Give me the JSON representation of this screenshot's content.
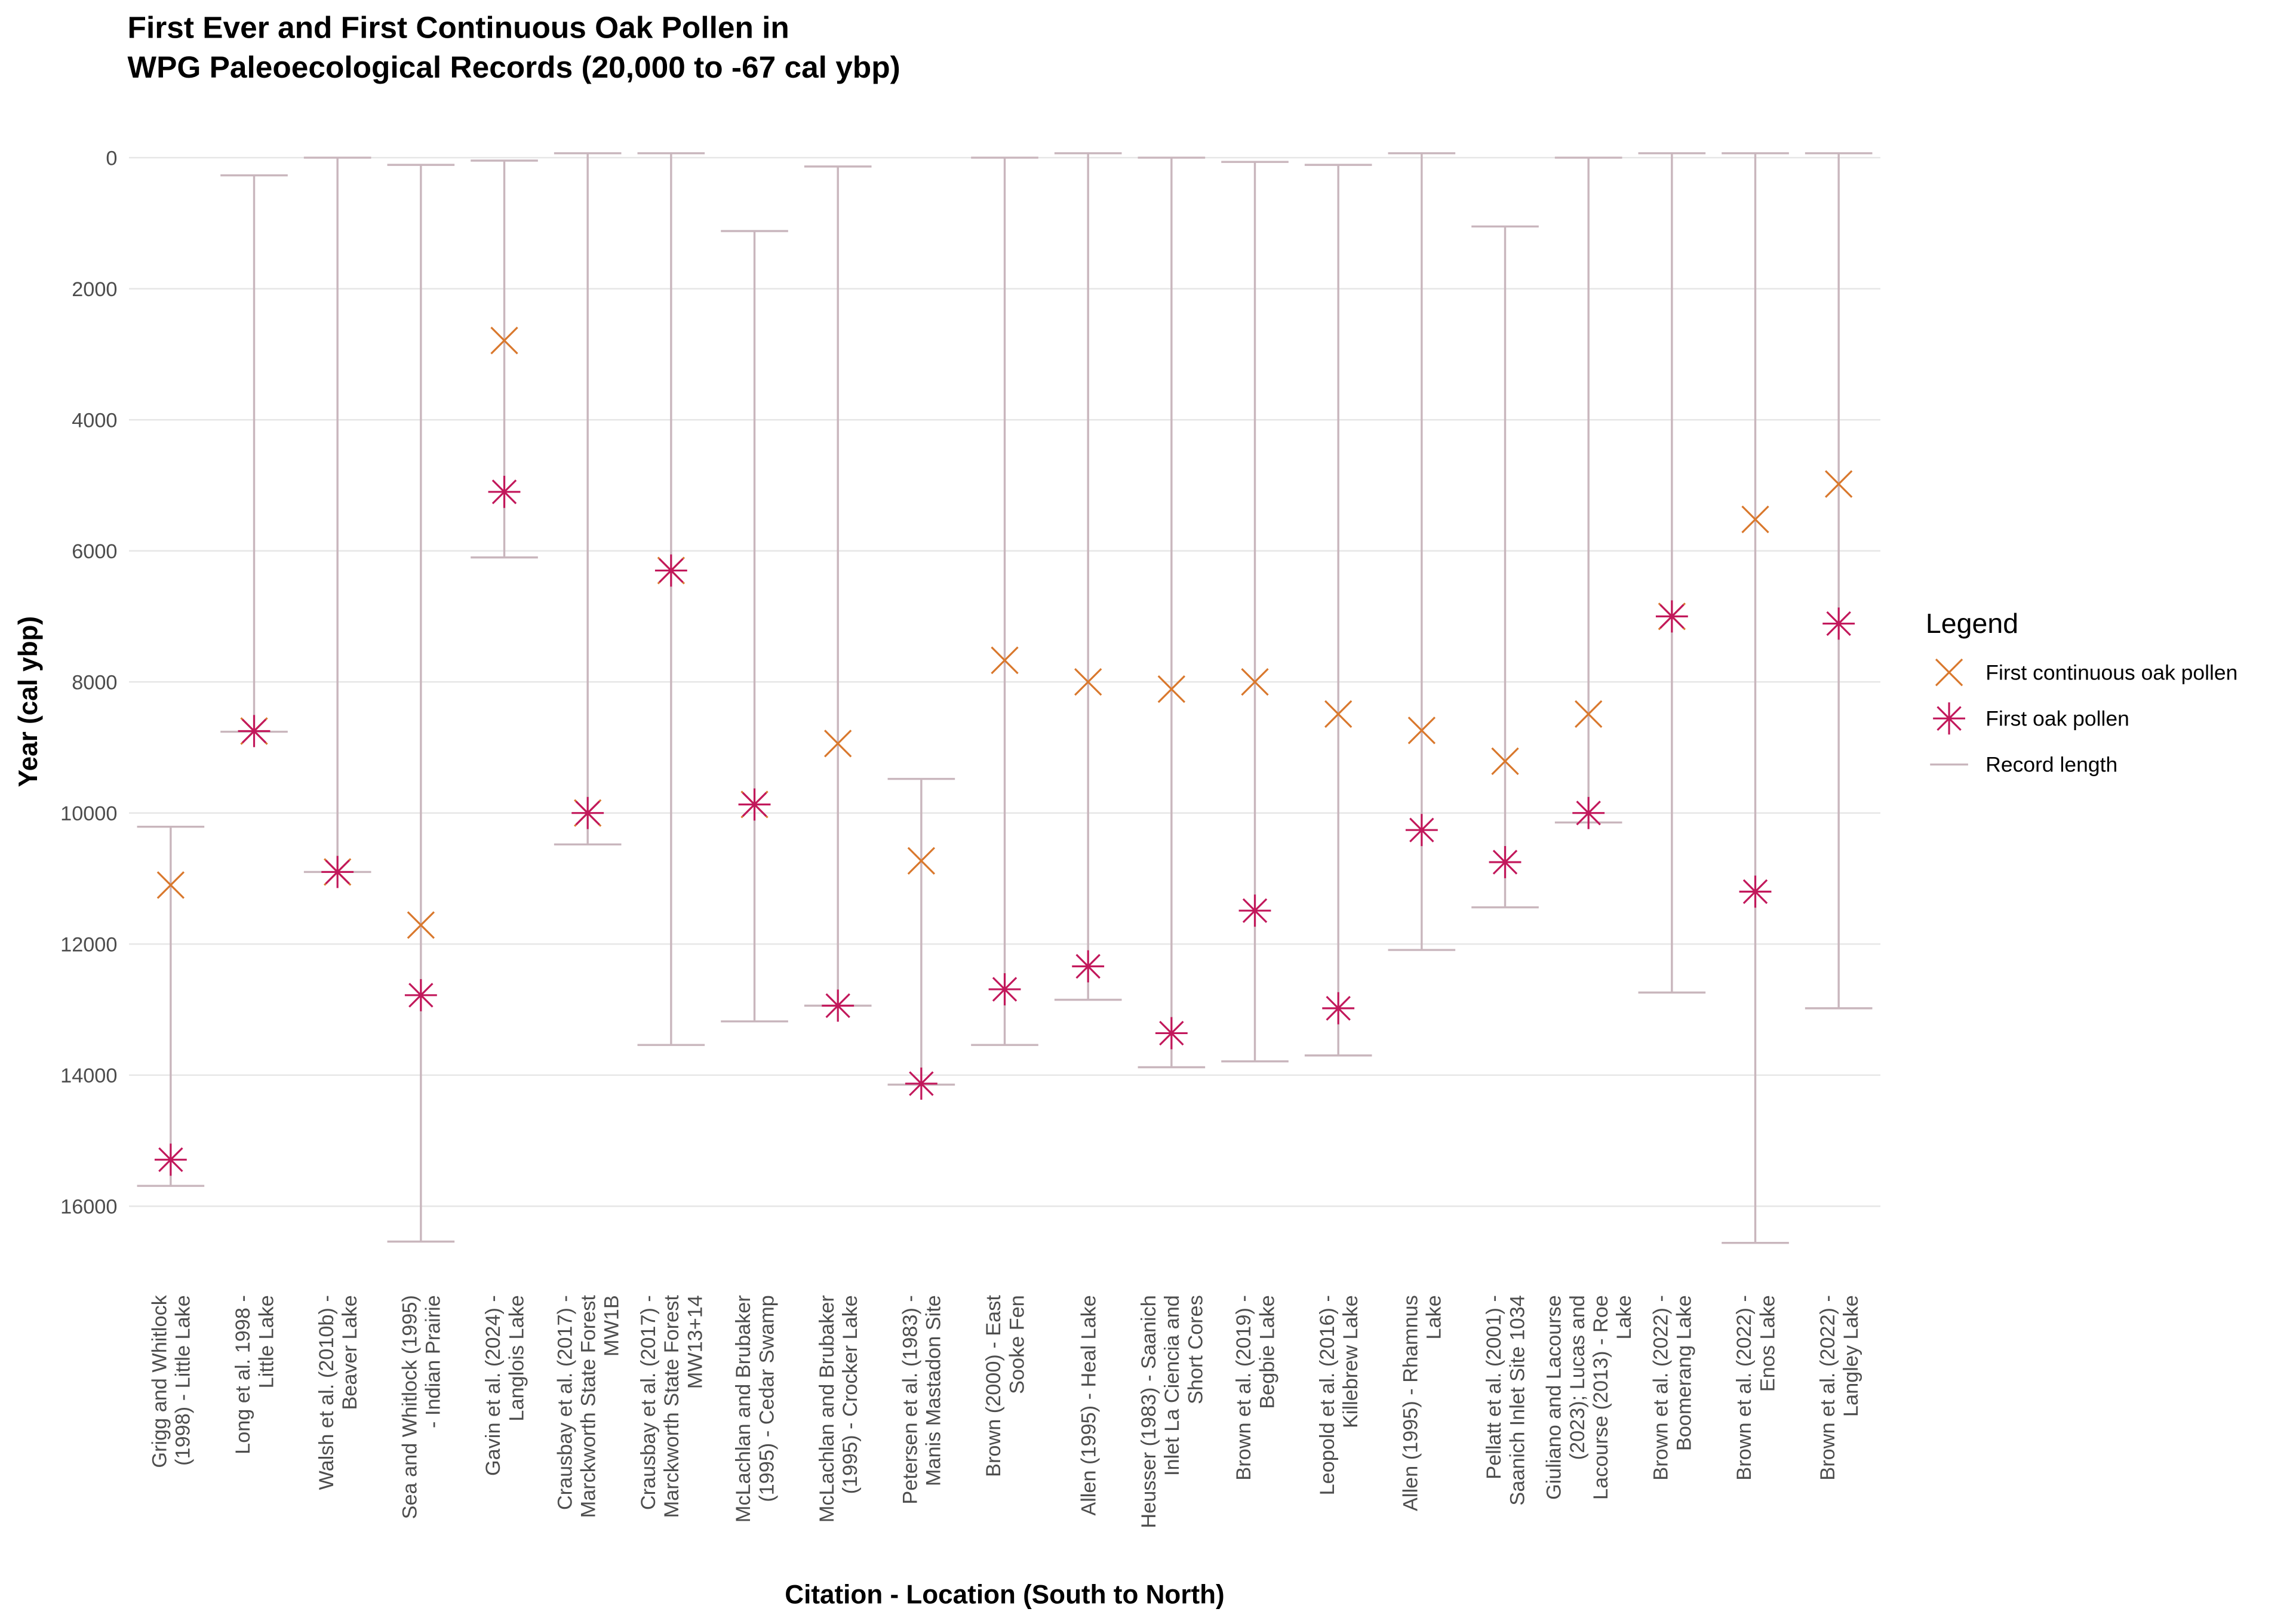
{
  "chart_data": {
    "type": "point-range",
    "title": [
      "First Ever and First Continuous Oak Pollen in",
      "WPG Paleoecological Records (20,000 to -67 cal ybp)"
    ],
    "x_label": "Citation - Location (South to North)",
    "y_label": "Year (cal ybp)",
    "legend_title": "Legend",
    "legend_position": "right",
    "grid": true,
    "y_reversed": true,
    "ylim": [
      -220,
      17000
    ],
    "yticks": [
      0,
      2000,
      4000,
      6000,
      8000,
      10000,
      12000,
      14000,
      16000
    ],
    "categories": [
      "Grigg and Whitlock\n(1998) - Little Lake",
      "Long et al. 1998 -\nLittle Lake",
      "Walsh et al. (2010b) -\nBeaver Lake",
      "Sea and Whitlock (1995)\n- Indian Prairie",
      "Gavin et al. (2024) -\nLanglois Lake",
      "Crausbay et al. (2017) -\nMarckworth State Forest\nMW1B",
      "Crausbay et al. (2017) -\nMarckworth State Forest\nMW13+14",
      "McLachlan and Brubaker\n(1995) - Cedar Swamp",
      "McLachlan and Brubaker\n(1995) - Crocker Lake",
      "Petersen et al. (1983) -\nManis Mastadon Site",
      "Brown (2000) - East\nSooke Fen",
      "Allen (1995) - Heal Lake",
      "Heusser (1983) - Saanich\nInlet La Ciencia and\nShort Cores",
      "Brown et al. (2019) -\nBegbie Lake",
      "Leopold et al. (2016) -\nKillebrew Lake",
      "Allen (1995) - Rhamnus\nLake",
      "Pellatt et al. (2001) -\nSaanich Inlet Site 1034",
      "Giuliano and Lacourse\n(2023); Lucas and\nLacourse (2013) - Roe\nLake",
      "Brown et al. (2022) -\nBoomerang Lake",
      "Brown et al. (2022) -\nEnos Lake",
      "Brown et al. (2022) -\nLangley Lake"
    ],
    "range": {
      "name": "Record length",
      "color": "#c9b6bd",
      "start": [
        10210,
        270,
        0,
        110,
        45,
        -67,
        -67,
        1120,
        135,
        9480,
        0,
        -67,
        0,
        65,
        110,
        -67,
        1050,
        0,
        -67,
        -67,
        -67
      ],
      "end": [
        15690,
        8760,
        10900,
        16540,
        6100,
        10480,
        13540,
        13180,
        12940,
        14145,
        13540,
        12850,
        13880,
        13790,
        13700,
        12090,
        11440,
        10145,
        12740,
        16560,
        12980
      ]
    },
    "series": [
      {
        "name": "First continuous oak pollen",
        "color": "#d9782d",
        "shape": "cross",
        "values": [
          11100,
          8750,
          10900,
          11710,
          2790,
          10000,
          6300,
          9870,
          8940,
          10730,
          7670,
          8000,
          8110,
          8000,
          8490,
          8740,
          9210,
          8490,
          7000,
          5520,
          4980
        ]
      },
      {
        "name": "First oak pollen",
        "color": "#c2185b",
        "shape": "asterisk",
        "values": [
          15290,
          8750,
          10900,
          12780,
          5100,
          10000,
          6300,
          9870,
          12940,
          14130,
          12690,
          12340,
          13360,
          11490,
          12980,
          10260,
          10750,
          10000,
          7000,
          11200,
          7110
        ]
      }
    ]
  }
}
